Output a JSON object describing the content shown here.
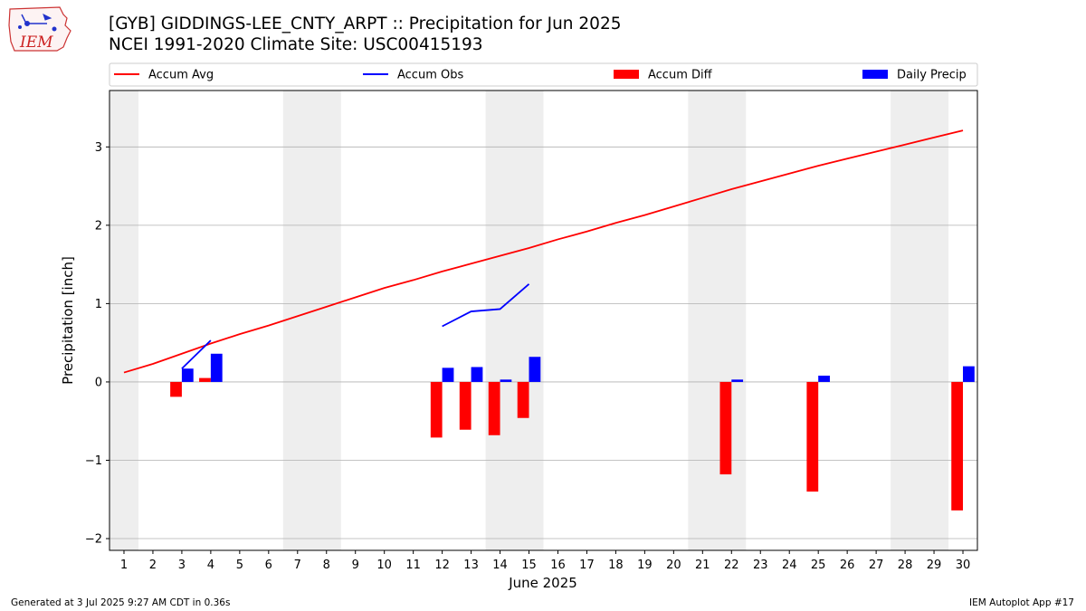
{
  "header": {
    "title_line1": "[GYB] GIDDINGS-LEE_CNTY_ARPT :: Precipitation for Jun 2025",
    "title_line2": "NCEI 1991-2020 Climate Site: USC00415193",
    "logo_text": "IEM"
  },
  "footer": {
    "generated": "Generated at 3 Jul 2025 9:27 AM CDT in 0.36s",
    "app": "IEM Autoplot App #17"
  },
  "colors": {
    "avg": "#ff0000",
    "obs": "#0000ff",
    "diff": "#ff0000",
    "daily": "#0000ff",
    "weekend_shade": "#eeeeee",
    "grid": "#b0b0b0"
  },
  "chart_data": {
    "type": "bar",
    "xlabel": "June 2025",
    "ylabel": "Precipitation [inch]",
    "xlim": [
      0.5,
      30.5
    ],
    "ylim": [
      -2.15,
      3.72
    ],
    "yticks": [
      -2,
      -1,
      0,
      1,
      2,
      3
    ],
    "xticks": [
      1,
      2,
      3,
      4,
      5,
      6,
      7,
      8,
      9,
      10,
      11,
      12,
      13,
      14,
      15,
      16,
      17,
      18,
      19,
      20,
      21,
      22,
      23,
      24,
      25,
      26,
      27,
      28,
      29,
      30
    ],
    "grid": "horizontal",
    "legend_position": "top",
    "shaded_days": [
      [
        0.5,
        1.5
      ],
      [
        6.5,
        8.5
      ],
      [
        13.5,
        15.5
      ],
      [
        20.5,
        22.5
      ],
      [
        27.5,
        29.5
      ]
    ],
    "series": [
      {
        "name": "Accum Avg",
        "kind": "line",
        "x": [
          1,
          2,
          3,
          4,
          5,
          6,
          7,
          8,
          9,
          10,
          11,
          12,
          13,
          14,
          15,
          16,
          17,
          18,
          19,
          20,
          21,
          22,
          23,
          24,
          25,
          26,
          27,
          28,
          29,
          30
        ],
        "values": [
          0.12,
          0.23,
          0.36,
          0.49,
          0.61,
          0.72,
          0.84,
          0.96,
          1.08,
          1.2,
          1.3,
          1.41,
          1.51,
          1.61,
          1.71,
          1.82,
          1.92,
          2.03,
          2.13,
          2.24,
          2.35,
          2.46,
          2.56,
          2.66,
          2.76,
          2.85,
          2.94,
          3.03,
          3.12,
          3.21
        ]
      },
      {
        "name": "Accum Obs",
        "kind": "line",
        "segments": [
          {
            "x": [
              3,
              4
            ],
            "values": [
              0.17,
              0.53
            ]
          },
          {
            "x": [
              12,
              13,
              14,
              15
            ],
            "values": [
              0.71,
              0.9,
              0.93,
              1.25
            ]
          }
        ]
      },
      {
        "name": "Accum Diff",
        "kind": "bar",
        "x": [
          3,
          4,
          12,
          13,
          14,
          15,
          22,
          25,
          30
        ],
        "values": [
          -0.19,
          0.05,
          -0.71,
          -0.61,
          -0.68,
          -0.46,
          -1.18,
          -1.4,
          -1.64
        ]
      },
      {
        "name": "Daily Precip",
        "kind": "bar",
        "x": [
          3,
          4,
          12,
          13,
          14,
          15,
          22,
          25,
          30
        ],
        "values": [
          0.17,
          0.36,
          0.18,
          0.19,
          0.03,
          0.32,
          0.03,
          0.08,
          0.2
        ]
      }
    ]
  }
}
